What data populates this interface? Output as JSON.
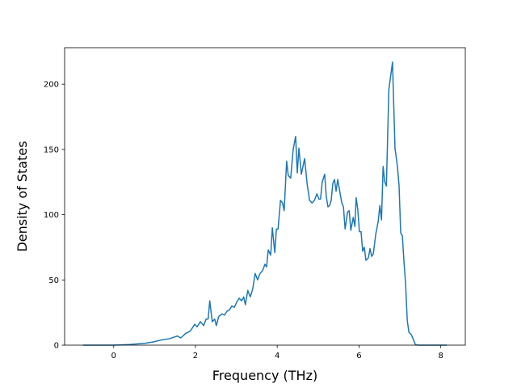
{
  "chart_data": {
    "type": "line",
    "x_label": "Frequency (THz)",
    "y_label": "Density of States",
    "x": [
      -0.75,
      0,
      0.38,
      0.77,
      0.97,
      1.17,
      1.37,
      1.46,
      1.56,
      1.64,
      1.76,
      1.86,
      1.92,
      1.98,
      2.04,
      2.12,
      2.2,
      2.26,
      2.31,
      2.35,
      2.41,
      2.47,
      2.51,
      2.57,
      2.65,
      2.71,
      2.77,
      2.83,
      2.89,
      2.95,
      3.01,
      3.07,
      3.13,
      3.18,
      3.22,
      3.28,
      3.34,
      3.4,
      3.46,
      3.52,
      3.58,
      3.64,
      3.7,
      3.74,
      3.78,
      3.84,
      3.88,
      3.94,
      3.98,
      4.02,
      4.08,
      4.13,
      4.17,
      4.23,
      4.27,
      4.33,
      4.39,
      4.45,
      4.49,
      4.53,
      4.59,
      4.67,
      4.73,
      4.79,
      4.85,
      4.91,
      4.97,
      5.02,
      5.06,
      5.1,
      5.16,
      5.2,
      5.24,
      5.28,
      5.32,
      5.36,
      5.4,
      5.44,
      5.48,
      5.54,
      5.58,
      5.62,
      5.66,
      5.72,
      5.76,
      5.8,
      5.86,
      5.9,
      5.93,
      5.97,
      6.01,
      6.05,
      6.09,
      6.13,
      6.17,
      6.23,
      6.27,
      6.31,
      6.35,
      6.41,
      6.47,
      6.51,
      6.55,
      6.59,
      6.63,
      6.67,
      6.73,
      6.82,
      6.88,
      6.94,
      6.98,
      7.02,
      7.06,
      7.1,
      7.14,
      7.18,
      7.22,
      7.28,
      7.32,
      7.38,
      7.44,
      8.15
    ],
    "series": [
      {
        "color": "#1f77b4",
        "values": [
          0,
          0,
          0.5,
          1.5,
          2.5,
          4,
          5,
          6,
          7,
          5.5,
          9,
          10.5,
          13,
          16,
          14,
          18,
          15,
          20,
          20,
          34,
          18,
          20,
          15,
          22,
          24,
          23,
          26,
          27,
          30,
          29,
          33,
          36,
          34,
          37,
          31,
          42,
          37,
          43,
          55,
          50,
          55,
          57,
          62,
          60,
          73,
          69,
          90,
          71,
          89,
          89,
          111,
          109,
          103,
          141,
          130,
          128,
          150,
          160,
          132,
          151,
          131,
          143,
          124,
          111,
          109,
          111,
          116,
          112,
          112,
          125,
          131,
          114,
          106,
          107,
          111,
          124,
          127,
          118,
          127,
          116,
          109,
          106,
          89,
          102,
          103,
          88,
          98,
          91,
          113,
          104,
          87,
          87,
          72,
          75,
          65,
          67,
          74,
          68,
          70,
          85,
          95,
          107,
          96,
          137,
          125,
          122,
          196,
          217,
          151,
          137,
          122,
          86,
          84,
          64,
          47,
          19,
          10,
          8,
          5,
          0.5,
          0,
          0
        ]
      }
    ],
    "xlim": [
      -1.2,
      8.6
    ],
    "ylim": [
      0,
      228
    ],
    "xticks": [
      0,
      2,
      4,
      6,
      8
    ],
    "yticks": [
      0,
      50,
      100,
      150,
      200
    ]
  }
}
